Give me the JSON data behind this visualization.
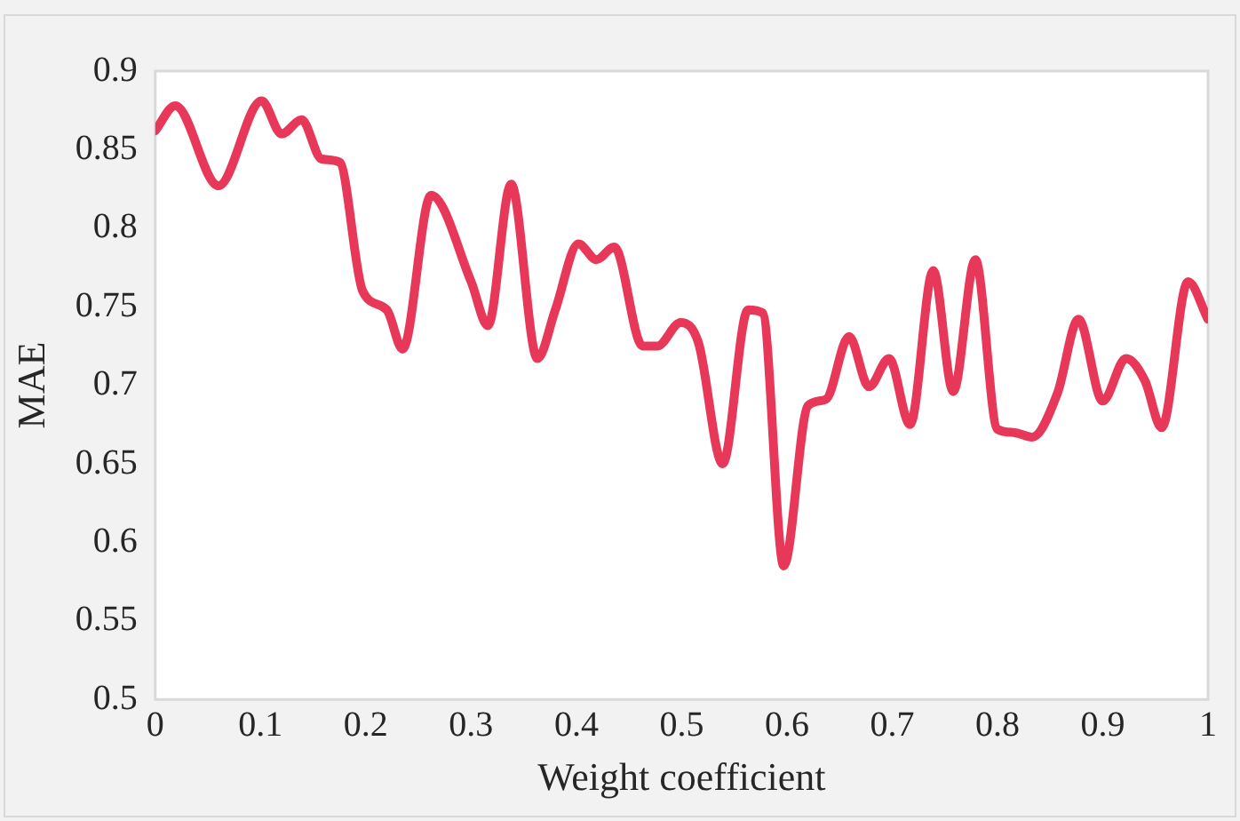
{
  "chart_data": {
    "type": "line",
    "xlabel": "Weight coefficient",
    "ylabel": "MAE",
    "xlim": [
      0,
      1
    ],
    "xticks": [
      0,
      0.1,
      0.2,
      0.3,
      0.4,
      0.5,
      0.6,
      0.7,
      0.8,
      0.9,
      1
    ],
    "ylim": [
      0.5,
      0.9
    ],
    "yticks": [
      0.5,
      0.55,
      0.6,
      0.65,
      0.7,
      0.75,
      0.8,
      0.85,
      0.9
    ],
    "grid": false,
    "legend": false,
    "marker": "none",
    "line_style": "solid",
    "series": [
      {
        "color": "#e8385a",
        "x": [
          0,
          0.019,
          0.06,
          0.101,
          0.12,
          0.139,
          0.158,
          0.175,
          0.197,
          0.22,
          0.235,
          0.262,
          0.3,
          0.316,
          0.338,
          0.363,
          0.38,
          0.402,
          0.419,
          0.436,
          0.463,
          0.477,
          0.499,
          0.516,
          0.539,
          0.563,
          0.577,
          0.597,
          0.62,
          0.637,
          0.659,
          0.678,
          0.697,
          0.717,
          0.739,
          0.758,
          0.779,
          0.8,
          0.815,
          0.833,
          0.857,
          0.877,
          0.9,
          0.922,
          0.94,
          0.956,
          0.981,
          1.0
        ],
        "values": [
          0.862,
          0.878,
          0.827,
          0.881,
          0.86,
          0.869,
          0.844,
          0.842,
          0.76,
          0.748,
          0.723,
          0.821,
          0.766,
          0.738,
          0.828,
          0.717,
          0.748,
          0.79,
          0.78,
          0.788,
          0.725,
          0.725,
          0.74,
          0.727,
          0.65,
          0.748,
          0.746,
          0.585,
          0.687,
          0.691,
          0.731,
          0.699,
          0.717,
          0.675,
          0.773,
          0.696,
          0.78,
          0.672,
          0.67,
          0.667,
          0.695,
          0.742,
          0.69,
          0.717,
          0.703,
          0.673,
          0.766,
          0.742
        ]
      }
    ]
  }
}
